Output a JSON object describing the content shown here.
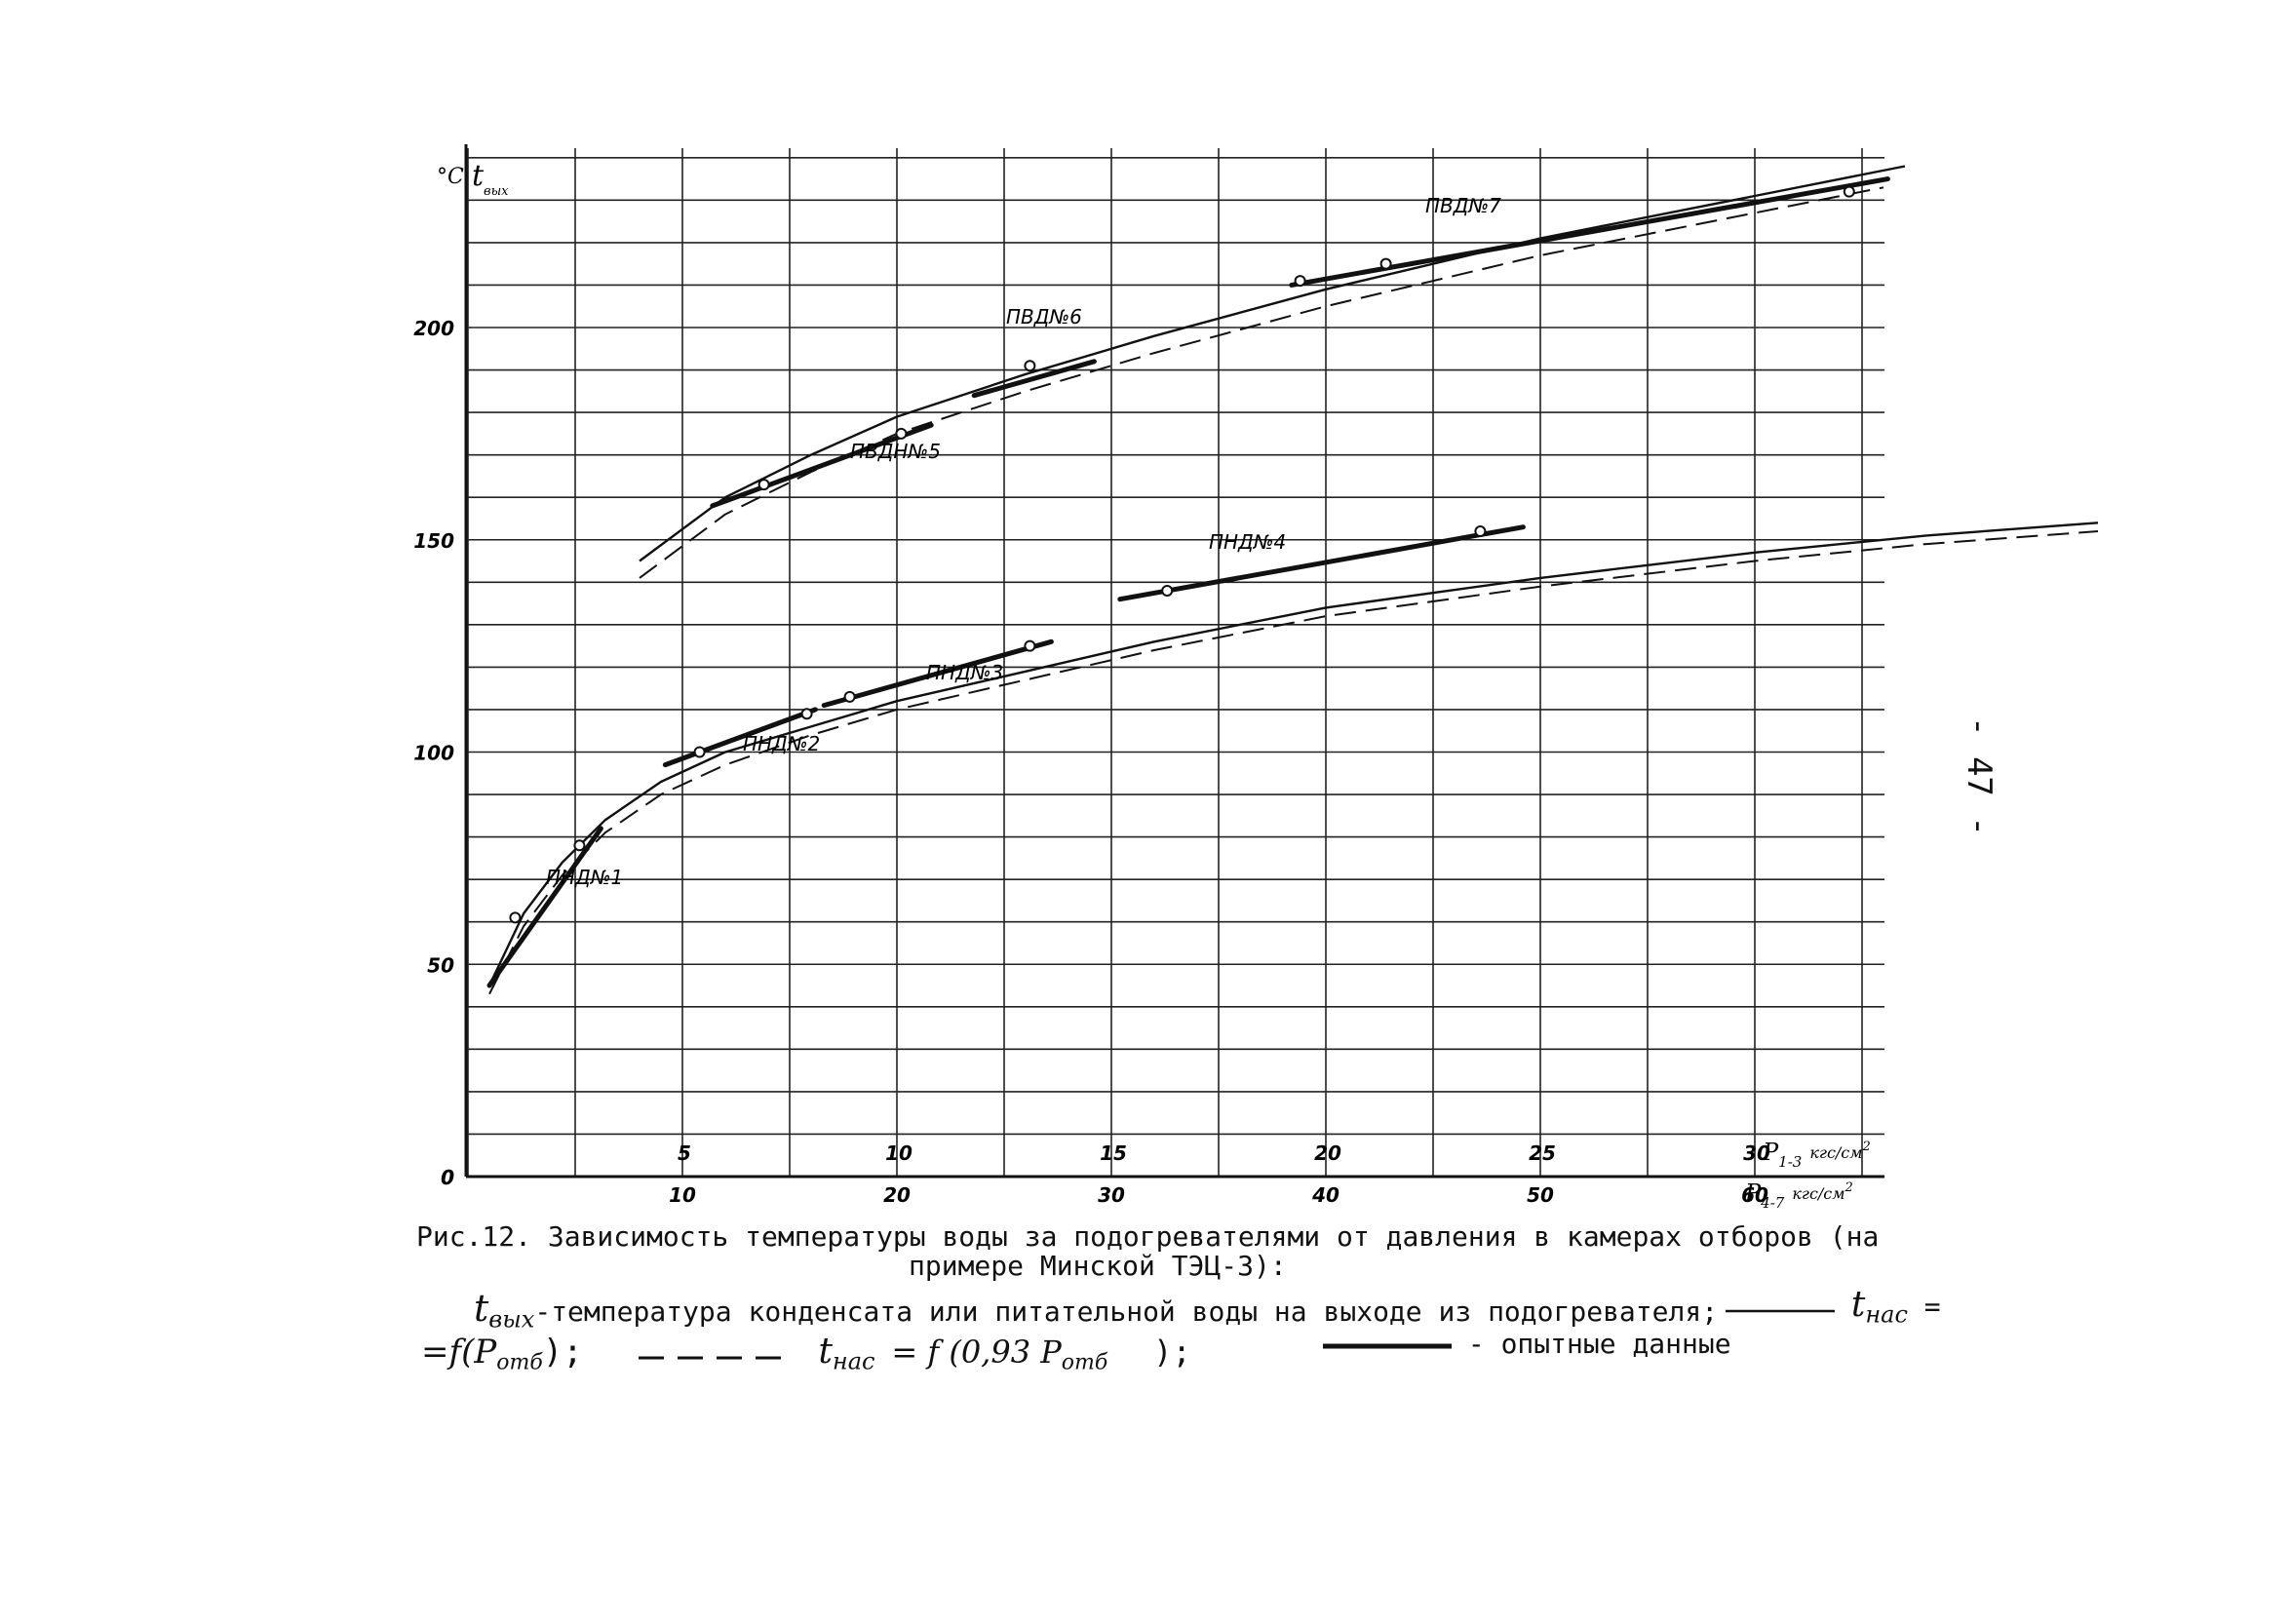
{
  "page_number": "- 47 -",
  "caption": {
    "title_line1": "Рис.12. Зависимость температуры воды за подогревателями от давления в камерах отборов (на",
    "title_line2": "примере Минской ТЭЦ-3):",
    "legend_line1_symbol": "t",
    "legend_line1_sub": "вых",
    "legend_line1_text": "-температура конденсата или питательной воды на выходе из подогревателя;",
    "legend_solid_label_t": "t",
    "legend_solid_label_sub": "нас",
    "legend_solid_eq": "=",
    "legend_line2_solid_formula": "=f(P",
    "legend_line2_solid_sub": "отб",
    "legend_line2_solid_end": ");",
    "legend_dashed_t": "t",
    "legend_dashed_sub": "нас",
    "legend_dashed_formula": "= f (0,93 P",
    "legend_dashed_sub2": "отб",
    "legend_dashed_end": ");",
    "legend_experimental": "- опытные данные"
  },
  "chart_data": {
    "type": "line",
    "y_unit": "°C",
    "y_symbol": "t",
    "y_symbol_sub": "вых",
    "ylim": [
      0,
      240
    ],
    "y_ticks": [
      0,
      50,
      100,
      150,
      200
    ],
    "y_tick_labels": [
      "0",
      "50",
      "100",
      "150",
      "200"
    ],
    "x_axis_P13": {
      "label_P": "P",
      "label_sub": "1-3",
      "label_unit": "кгс/см",
      "label_exp": "2",
      "xlim": [
        0,
        33
      ],
      "ticks": [
        5,
        10,
        15,
        20,
        25,
        30
      ],
      "tick_labels": [
        "5",
        "10",
        "15",
        "20",
        "25",
        "30"
      ]
    },
    "x_axis_P47": {
      "label_P": "P",
      "label_sub": "4-7",
      "label_unit": "кгс/см",
      "label_exp": "2",
      "xlim": [
        0,
        66
      ],
      "ticks": [
        10,
        20,
        30,
        40,
        50,
        60
      ],
      "tick_labels": [
        "10",
        "20",
        "30",
        "40",
        "50",
        "60"
      ]
    },
    "grid": true,
    "series": [
      {
        "style": "solid",
        "x": [
          0.5,
          1.3,
          2.2,
          3.2,
          4.5,
          6,
          8,
          10,
          13,
          16,
          20,
          25,
          30,
          34,
          38
        ],
        "y": [
          45,
          62,
          74,
          84,
          93,
          100,
          106,
          112,
          119,
          126,
          134,
          141,
          147,
          151,
          154
        ]
      },
      {
        "style": "dashed",
        "x": [
          0.5,
          1.3,
          2.2,
          3.2,
          4.5,
          6,
          8,
          10,
          13,
          16,
          20,
          25,
          30,
          34,
          38
        ],
        "y": [
          43,
          59,
          71,
          81,
          90,
          97,
          104,
          110,
          117,
          124,
          132,
          139,
          145,
          149,
          152
        ]
      },
      {
        "style": "solid",
        "x": [
          4,
          6,
          8,
          10,
          13,
          16,
          20,
          25,
          30,
          33.5
        ],
        "y": [
          145,
          160,
          170,
          179,
          189,
          198,
          209,
          221,
          231,
          238
        ]
      },
      {
        "style": "dashed",
        "x": [
          4,
          6,
          8,
          10,
          13,
          16,
          20,
          25,
          30,
          33
        ],
        "y": [
          141,
          156,
          166,
          175,
          185,
          194,
          205,
          217,
          227,
          233
        ]
      }
    ],
    "experimental": [
      {
        "name": "ПНД№1",
        "x": [
          0.5,
          3.1
        ],
        "y": [
          45,
          82
        ],
        "points": [
          [
            1.1,
            61
          ],
          [
            2.6,
            78
          ]
        ]
      },
      {
        "name": "ПНД№2",
        "x": [
          4.6,
          8.1
        ],
        "y": [
          97,
          110
        ],
        "points": [
          [
            5.4,
            100
          ],
          [
            7.9,
            109
          ]
        ]
      },
      {
        "name": "ПНД№3",
        "x": [
          8.3,
          13.6
        ],
        "y": [
          111,
          126
        ],
        "points": [
          [
            8.9,
            113
          ],
          [
            13.1,
            125
          ]
        ]
      },
      {
        "name": "ПНД№4",
        "x": [
          15.2,
          24.6
        ],
        "y": [
          136,
          153
        ],
        "points": [
          [
            16.3,
            138
          ],
          [
            23.6,
            152
          ]
        ]
      },
      {
        "name": "ПВДН№5",
        "x": [
          5.7,
          10.8
        ],
        "y": [
          158,
          177
        ],
        "points": [
          [
            6.9,
            163
          ],
          [
            10.1,
            175
          ]
        ]
      },
      {
        "name": "ПВД№6",
        "x": [
          11.8,
          14.6
        ],
        "y": [
          184,
          192
        ],
        "points": [
          [
            13.1,
            191
          ]
        ]
      },
      {
        "name": "ПВД№7",
        "x": [
          19.2,
          33.1
        ],
        "y": [
          210,
          235
        ],
        "points": [
          [
            19.4,
            211
          ],
          [
            21.4,
            215
          ],
          [
            32.2,
            232
          ]
        ]
      }
    ],
    "annotations": [
      "ПНД№1",
      "ПНД№2",
      "ПНД№3",
      "ПНД№4",
      "ПВДН№5",
      "ПВД№6",
      "ПВД№7"
    ]
  }
}
